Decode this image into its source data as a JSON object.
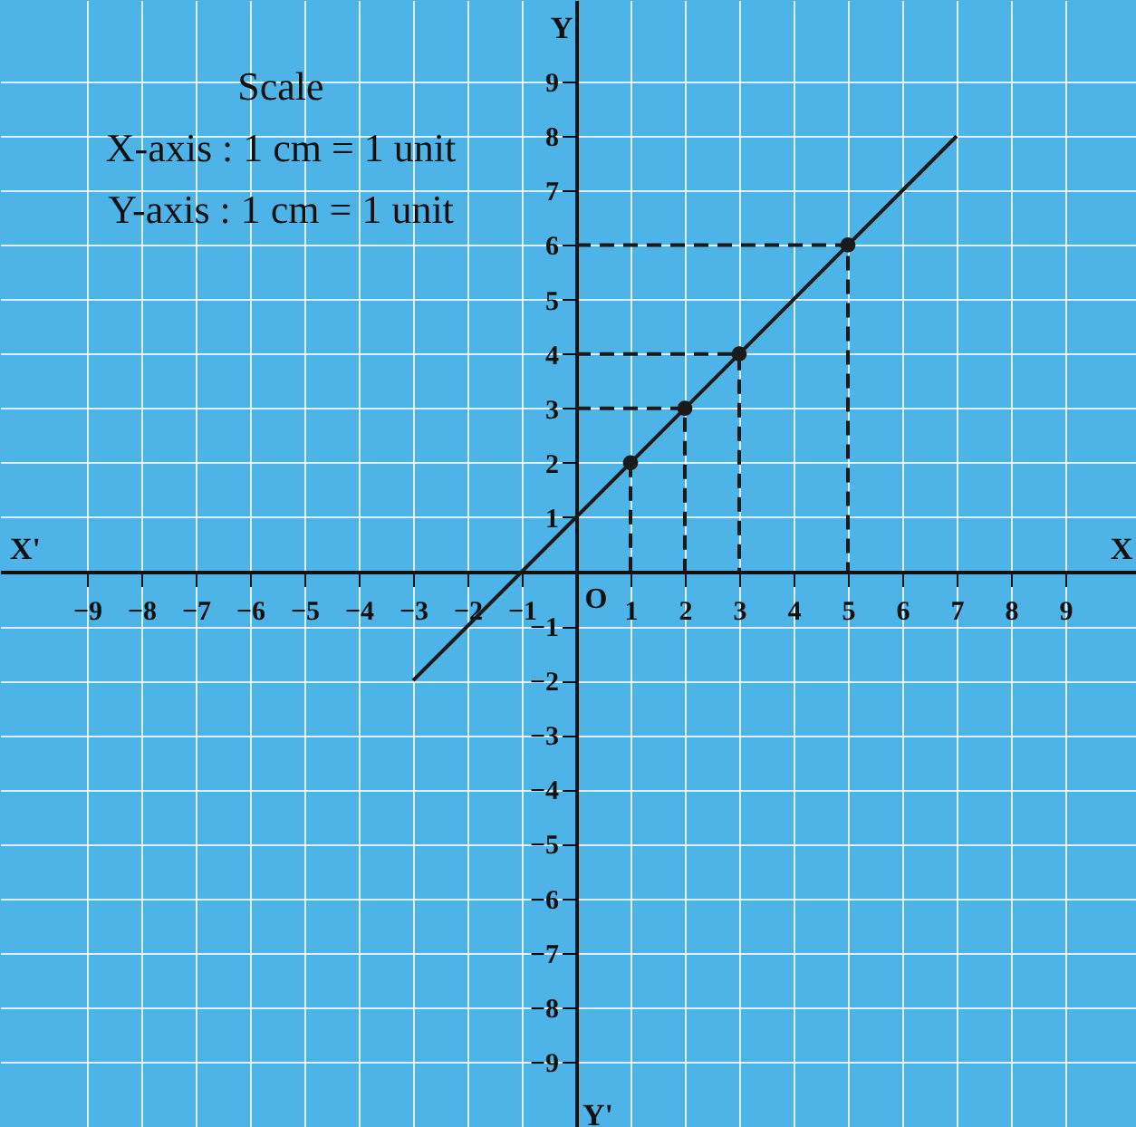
{
  "chart_data": {
    "type": "line",
    "xlabel": "X",
    "ylabel": "Y",
    "annotations": [
      "Scale",
      "X-axis : 1 cm = 1 unit",
      "Y-axis : 1 cm = 1 unit",
      "X'",
      "Y'",
      "O"
    ],
    "xlim": [
      -10.6,
      10.3
    ],
    "ylim": [
      -10.2,
      10.5
    ],
    "xticks": [
      -9,
      -8,
      -7,
      -6,
      -5,
      -4,
      -3,
      -2,
      -1,
      1,
      2,
      3,
      4,
      5,
      6,
      7,
      8,
      9
    ],
    "yticks": [
      -9,
      -8,
      -7,
      -6,
      -5,
      -4,
      -3,
      -2,
      -1,
      1,
      2,
      3,
      4,
      5,
      6,
      7,
      8,
      9
    ],
    "grid": true,
    "series": [
      {
        "type": "line",
        "color": "#1a1a1a",
        "line_style": "solid",
        "marker": "none",
        "x": [
          -3,
          7
        ],
        "values": [
          -2,
          8
        ]
      },
      {
        "type": "line",
        "color": "#1a1a1a",
        "line_style": "dashed",
        "marker": "none",
        "x": [
          1,
          1
        ],
        "values": [
          2,
          0
        ]
      },
      {
        "type": "line",
        "color": "#1a1a1a",
        "line_style": "dashed",
        "marker": "none",
        "x": [
          0,
          2,
          2
        ],
        "values": [
          3,
          3,
          0
        ]
      },
      {
        "type": "line",
        "color": "#1a1a1a",
        "line_style": "dashed",
        "marker": "none",
        "x": [
          0,
          3,
          3
        ],
        "values": [
          4,
          4,
          0
        ]
      },
      {
        "type": "line",
        "color": "#1a1a1a",
        "line_style": "dashed",
        "marker": "none",
        "x": [
          0,
          5,
          5
        ],
        "values": [
          6,
          6,
          0
        ]
      },
      {
        "type": "scatter",
        "color": "#1a1a1a",
        "marker": "circle",
        "x": [
          1,
          2,
          3,
          5
        ],
        "values": [
          2,
          3,
          4,
          6
        ]
      }
    ]
  }
}
